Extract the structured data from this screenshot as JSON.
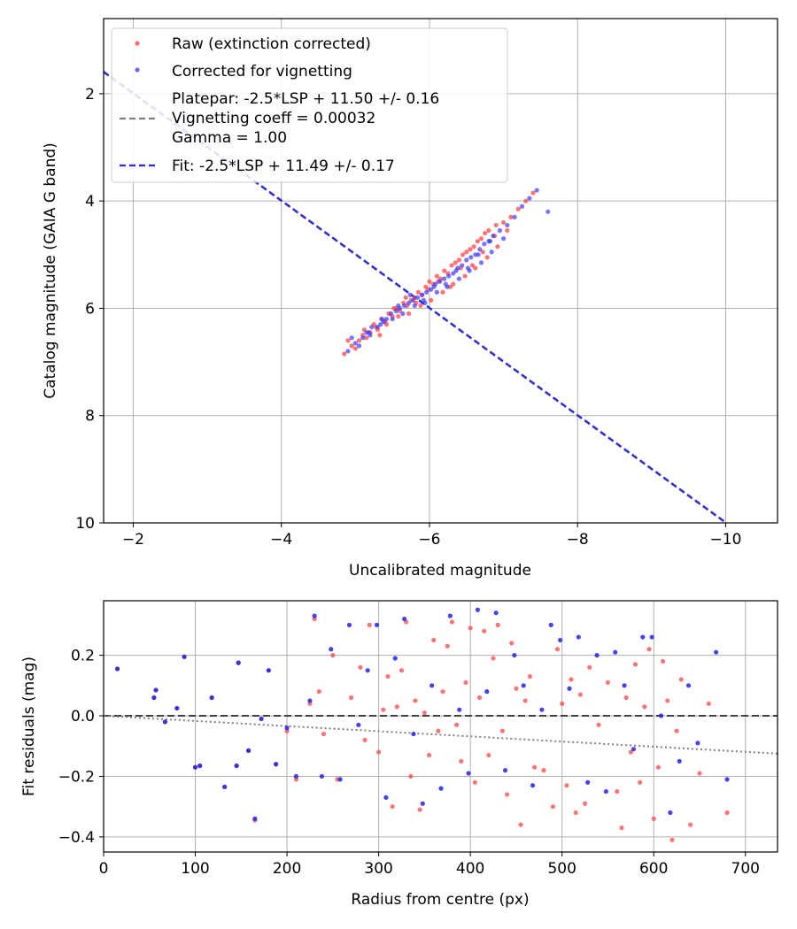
{
  "chart_data": [
    {
      "type": "scatter",
      "xlabel": "Uncalibrated magnitude",
      "ylabel": "Catalog magnitude (GAIA G band)",
      "xlim": [
        -1.6,
        -10.7
      ],
      "ylim": [
        10.0,
        0.6
      ],
      "x_inverted": true,
      "y_inverted": true,
      "grid": true,
      "legend_position": "top-left",
      "xticks": [
        -2,
        -4,
        -6,
        -8,
        -10
      ],
      "xtick_labels": [
        "−2",
        "−4",
        "−6",
        "−8",
        "−10"
      ],
      "yticks": [
        2,
        4,
        6,
        8,
        10
      ],
      "ytick_labels": [
        "2",
        "4",
        "6",
        "8",
        "10"
      ],
      "legend": [
        {
          "label": "Raw (extinction corrected)",
          "kind": "marker",
          "color": "#ff3b3b"
        },
        {
          "label": "Corrected for vignetting",
          "kind": "marker",
          "color": "#3b3bff"
        },
        {
          "label": "Platepar: -2.5*LSP + 11.50 +/- 0.16\nVignetting coeff = 0.00032\nGamma = 1.00",
          "kind": "line",
          "color": "#808080"
        },
        {
          "label": "Fit: -2.5*LSP + 11.49 +/- 0.17",
          "kind": "line",
          "color": "#2a2ad6"
        }
      ],
      "lines": [
        {
          "name": "Platepar",
          "zero_point": 11.5,
          "color": "#808080"
        },
        {
          "name": "Fit",
          "zero_point": 11.49,
          "color": "#2a2ad6"
        }
      ],
      "series": [
        {
          "name": "Raw (extinction corrected)",
          "color": "#ff3b3b",
          "x": [
            -4.85,
            -4.95,
            -5.05,
            -5.1,
            -5.2,
            -5.25,
            -5.3,
            -5.35,
            -5.4,
            -5.45,
            -5.5,
            -5.55,
            -5.6,
            -5.65,
            -5.7,
            -5.75,
            -5.8,
            -5.85,
            -5.9,
            -5.95,
            -6.0,
            -6.05,
            -6.1,
            -6.15,
            -6.2,
            -6.25,
            -6.3,
            -6.35,
            -6.4,
            -6.45,
            -6.5,
            -6.55,
            -6.6,
            -6.65,
            -6.7,
            -6.75,
            -6.8,
            -6.9,
            -7.0,
            -7.1,
            -7.2,
            -7.3,
            -7.4,
            -5.0,
            -5.15,
            -5.28,
            -5.42,
            -5.58,
            -5.72,
            -5.88,
            -6.02,
            -6.18,
            -6.32,
            -6.48,
            -6.62,
            -6.78,
            -6.92,
            -7.05,
            -4.9,
            -5.12,
            -5.33,
            -5.52,
            -5.68,
            -5.82,
            -5.98,
            -6.12,
            -6.28,
            -6.42,
            -6.58,
            -6.72,
            -6.88
          ],
          "y": [
            6.85,
            6.7,
            6.6,
            6.5,
            6.45,
            6.3,
            6.4,
            6.2,
            6.25,
            6.1,
            6.15,
            6.0,
            6.05,
            5.9,
            5.95,
            5.85,
            5.8,
            5.7,
            5.75,
            5.6,
            5.5,
            5.55,
            5.4,
            5.45,
            5.3,
            5.35,
            5.2,
            5.15,
            5.1,
            5.0,
            4.95,
            4.9,
            4.85,
            4.75,
            4.7,
            4.6,
            4.55,
            4.45,
            4.4,
            4.3,
            4.15,
            4.0,
            3.85,
            6.75,
            6.55,
            6.35,
            6.3,
            6.15,
            6.1,
            5.95,
            5.85,
            5.7,
            5.55,
            5.4,
            5.25,
            5.05,
            4.85,
            4.55,
            6.6,
            6.4,
            6.5,
            6.0,
            5.8,
            5.9,
            5.65,
            5.5,
            5.6,
            5.25,
            5.2,
            4.95,
            4.65
          ]
        },
        {
          "name": "Corrected for vignetting",
          "color": "#3b3bff",
          "x": [
            -4.9,
            -5.0,
            -5.1,
            -5.15,
            -5.22,
            -5.3,
            -5.36,
            -5.42,
            -5.48,
            -5.55,
            -5.6,
            -5.66,
            -5.72,
            -5.78,
            -5.84,
            -5.9,
            -5.96,
            -6.02,
            -6.08,
            -6.14,
            -6.2,
            -6.26,
            -6.32,
            -6.38,
            -6.44,
            -6.5,
            -6.56,
            -6.62,
            -6.68,
            -6.74,
            -6.8,
            -6.86,
            -6.95,
            -7.05,
            -7.15,
            -7.25,
            -7.35,
            -7.45,
            -7.6,
            -5.05,
            -5.2,
            -5.34,
            -5.5,
            -5.64,
            -5.8,
            -5.94,
            -6.1,
            -6.24,
            -6.4,
            -6.54,
            -6.7,
            -6.84,
            -7.0,
            -4.95,
            -5.18,
            -5.38,
            -5.58,
            -5.74,
            -5.92,
            -6.06,
            -6.22,
            -6.36,
            -6.52,
            -6.66,
            -6.82
          ],
          "y": [
            6.8,
            6.65,
            6.55,
            6.45,
            6.35,
            6.35,
            6.2,
            6.2,
            6.1,
            6.05,
            6.0,
            5.95,
            5.9,
            5.85,
            5.8,
            5.75,
            5.7,
            5.65,
            5.55,
            5.5,
            5.45,
            5.4,
            5.35,
            5.25,
            5.2,
            5.1,
            5.05,
            5.0,
            4.9,
            4.8,
            4.75,
            4.65,
            4.55,
            4.45,
            4.3,
            4.1,
            3.95,
            3.8,
            4.2,
            6.7,
            6.5,
            6.3,
            6.2,
            6.1,
            5.95,
            5.9,
            5.7,
            5.6,
            5.45,
            5.3,
            5.15,
            4.95,
            4.7,
            6.55,
            6.45,
            6.25,
            5.95,
            5.75,
            5.85,
            5.6,
            5.55,
            5.3,
            5.25,
            5.0,
            4.75
          ]
        }
      ]
    },
    {
      "type": "scatter",
      "xlabel": "Radius from centre (px)",
      "ylabel": "Fit residuals (mag)",
      "xlim": [
        0,
        735
      ],
      "ylim": [
        -0.45,
        0.38
      ],
      "grid": true,
      "xticks": [
        0,
        100,
        200,
        300,
        400,
        500,
        600,
        700
      ],
      "xtick_labels": [
        "0",
        "100",
        "200",
        "300",
        "400",
        "500",
        "600",
        "700"
      ],
      "yticks": [
        -0.4,
        -0.2,
        0.0,
        0.2
      ],
      "ytick_labels": [
        "−0.4",
        "−0.2",
        "0.0",
        "0.2"
      ],
      "reference_lines": [
        {
          "name": "zero",
          "slope": 0.0,
          "intercept": 0.0,
          "style": "dashed",
          "color": "#404040"
        },
        {
          "name": "vignetting trend",
          "slope": -0.00017,
          "intercept": 0.0,
          "style": "dotted",
          "color": "#808080"
        }
      ],
      "series": [
        {
          "name": "Raw (extinction corrected)",
          "color": "#ff3b3b",
          "x": [
            15,
            55,
            57,
            67,
            80,
            88,
            100,
            105,
            118,
            132,
            145,
            147,
            158,
            165,
            172,
            180,
            188,
            200,
            210,
            225,
            230,
            235,
            240,
            250,
            255,
            270,
            280,
            285,
            290,
            300,
            305,
            310,
            315,
            320,
            325,
            330,
            335,
            340,
            345,
            350,
            355,
            360,
            365,
            370,
            375,
            380,
            385,
            390,
            395,
            400,
            405,
            410,
            415,
            420,
            425,
            430,
            435,
            440,
            445,
            450,
            455,
            460,
            465,
            470,
            480,
            490,
            495,
            500,
            505,
            510,
            515,
            520,
            525,
            530,
            540,
            550,
            560,
            565,
            570,
            575,
            580,
            585,
            590,
            595,
            600,
            605,
            610,
            615,
            620,
            625,
            630,
            640,
            650,
            660,
            680
          ],
          "y": [
            0.155,
            0.06,
            0.085,
            -0.02,
            0.025,
            0.195,
            -0.17,
            -0.165,
            0.06,
            -0.235,
            -0.165,
            0.175,
            -0.115,
            -0.345,
            -0.01,
            0.15,
            -0.16,
            -0.05,
            -0.21,
            0.04,
            0.32,
            0.08,
            -0.06,
            0.2,
            -0.21,
            0.06,
            0.16,
            -0.08,
            0.3,
            -0.12,
            0.02,
            0.13,
            -0.3,
            0.03,
            0.15,
            0.31,
            -0.2,
            0.05,
            -0.31,
            0.01,
            -0.13,
            0.25,
            -0.05,
            0.08,
            0.23,
            0.31,
            -0.03,
            -0.15,
            0.11,
            0.29,
            -0.22,
            0.06,
            0.28,
            -0.13,
            0.19,
            0.3,
            -0.05,
            -0.26,
            0.24,
            0.09,
            -0.36,
            0.05,
            0.13,
            -0.17,
            -0.18,
            -0.3,
            0.22,
            0.04,
            -0.23,
            0.12,
            -0.32,
            0.07,
            -0.29,
            0.16,
            -0.03,
            0.11,
            -0.25,
            -0.37,
            0.06,
            -0.12,
            0.17,
            -0.22,
            0.03,
            0.22,
            -0.34,
            -0.17,
            0.18,
            0.05,
            -0.41,
            -0.05,
            0.12,
            -0.36,
            -0.19,
            0.04,
            -0.32
          ]
        },
        {
          "name": "Corrected for vignetting",
          "color": "#2323e6",
          "x": [
            15,
            55,
            57,
            67,
            80,
            88,
            100,
            105,
            118,
            132,
            145,
            147,
            158,
            165,
            172,
            180,
            188,
            200,
            210,
            225,
            230,
            238,
            248,
            258,
            268,
            278,
            288,
            298,
            308,
            318,
            328,
            338,
            348,
            358,
            368,
            378,
            388,
            398,
            408,
            418,
            428,
            438,
            448,
            458,
            468,
            478,
            488,
            498,
            508,
            518,
            528,
            538,
            548,
            558,
            568,
            578,
            588,
            598,
            608,
            618,
            628,
            638,
            648,
            668,
            680
          ],
          "y": [
            0.155,
            0.06,
            0.085,
            -0.02,
            0.025,
            0.195,
            -0.17,
            -0.165,
            0.06,
            -0.235,
            -0.165,
            0.175,
            -0.115,
            -0.34,
            -0.01,
            0.15,
            -0.16,
            -0.04,
            -0.2,
            0.05,
            0.33,
            -0.2,
            0.22,
            -0.21,
            0.3,
            -0.03,
            0.15,
            0.3,
            -0.27,
            0.19,
            0.32,
            -0.06,
            -0.29,
            0.1,
            -0.24,
            0.33,
            0.02,
            -0.19,
            0.35,
            0.08,
            0.34,
            -0.18,
            0.2,
            0.1,
            -0.23,
            0.02,
            0.3,
            0.25,
            0.09,
            0.26,
            -0.22,
            0.2,
            -0.25,
            0.21,
            0.1,
            -0.11,
            0.26,
            0.26,
            0.0,
            -0.32,
            -0.15,
            0.1,
            -0.09,
            0.21,
            -0.21
          ]
        }
      ]
    }
  ]
}
